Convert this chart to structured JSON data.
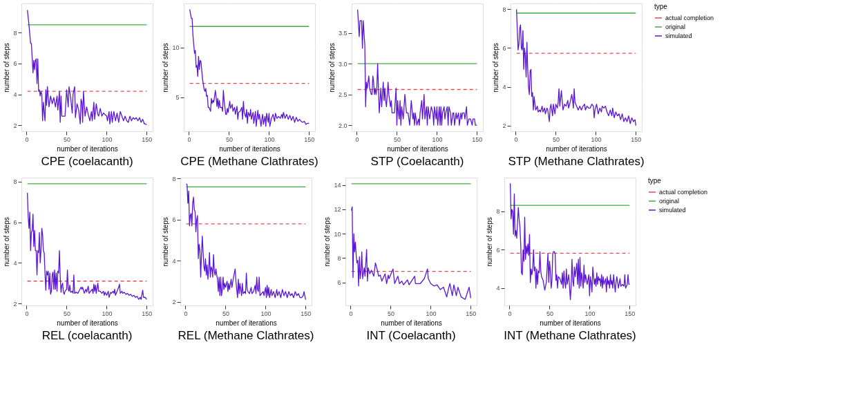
{
  "chart_data": [
    {
      "type": "line",
      "title": "CPE (coelacanth)",
      "xlabel": "number of iterations",
      "ylabel": "number of steps",
      "xlim": [
        -6.45,
        157.45
      ],
      "xticks": [
        0,
        50,
        100,
        150
      ],
      "ylim": [
        1.62,
        9.88
      ],
      "yticks": [
        2,
        4,
        6,
        8
      ],
      "grid": true,
      "line_style": "solid",
      "series": [
        {
          "color": "#e8474c",
          "line_style": "dashed",
          "x": [
            1,
            150
          ],
          "values": [
            4.2,
            4.2
          ]
        },
        {
          "color": "#3cae3c",
          "x": [
            1,
            150
          ],
          "values": [
            8.5,
            8.5
          ]
        },
        {
          "color": "#5a16d6",
          "x": [
            1,
            3,
            5,
            6,
            8,
            9,
            10,
            11,
            12,
            13,
            14,
            15,
            16,
            17,
            18,
            19,
            20,
            21,
            23,
            24,
            25,
            26,
            28,
            30,
            32,
            34,
            36,
            38,
            39,
            41,
            42,
            43,
            44,
            46,
            48,
            50,
            52,
            53,
            55,
            57,
            58,
            60,
            61,
            63,
            65,
            67,
            68,
            69,
            70,
            71,
            73,
            75,
            77,
            79,
            81,
            82,
            84,
            85,
            87,
            89,
            90,
            92,
            94,
            96,
            98,
            100,
            101,
            103,
            104,
            106,
            107,
            109,
            111,
            113,
            115,
            117,
            119,
            121,
            123,
            125,
            127,
            129,
            131,
            133,
            135,
            137,
            139,
            141,
            143,
            145,
            147,
            148,
            150
          ],
          "values": [
            9.45,
            8.5,
            7.3,
            7.3,
            5.4,
            6.2,
            5.6,
            6.2,
            6.3,
            4.7,
            6.3,
            4.2,
            4.3,
            3.9,
            4.2,
            4.0,
            2.3,
            3.5,
            2.3,
            4.3,
            3.3,
            4.5,
            3.2,
            3.9,
            3.4,
            3.8,
            3.2,
            3.9,
            3.0,
            4.2,
            2.2,
            3.9,
            2.6,
            2.6,
            2.6,
            4.3,
            3.2,
            4.5,
            3.8,
            2.8,
            4.0,
            4.5,
            2.5,
            3.4,
            3.0,
            2.1,
            3.7,
            3.5,
            2.2,
            4.2,
            2.6,
            3.2,
            2.7,
            2.3,
            2.9,
            2.3,
            3.5,
            2.4,
            3.4,
            2.7,
            2.6,
            3.1,
            2.6,
            2.8,
            2.7,
            2.6,
            2.3,
            2.9,
            2.1,
            2.9,
            2.2,
            2.9,
            2.3,
            2.8,
            2.2,
            2.9,
            2.6,
            2.3,
            2.6,
            2.3,
            2.2,
            2.6,
            2.3,
            2.5,
            2.4,
            2.5,
            2.3,
            2.5,
            2.2,
            2.4,
            2.1,
            2.1,
            2.05
          ]
        }
      ]
    },
    {
      "type": "line",
      "title": "CPE (Methane Clathrates)",
      "xlabel": "number of iterations",
      "ylabel": "number of steps",
      "xlim": [
        -6.45,
        157.45
      ],
      "xticks": [
        0,
        50,
        100,
        150
      ],
      "ylim": [
        1.6,
        14.4
      ],
      "yticks": [
        5,
        10
      ],
      "grid": true,
      "line_style": "solid",
      "series": [
        {
          "color": "#e8474c",
          "line_style": "dashed",
          "x": [
            1,
            150
          ],
          "values": [
            6.4,
            6.4
          ]
        },
        {
          "color": "#3cae3c",
          "x": [
            1,
            150
          ],
          "values": [
            12.1,
            12.1
          ]
        },
        {
          "color": "#5a16d6",
          "x": [
            1,
            3,
            4,
            5,
            7,
            8,
            9,
            10,
            11,
            12,
            13,
            14,
            15,
            17,
            19,
            20,
            21,
            22,
            23,
            24,
            25,
            27,
            28,
            29,
            30,
            31,
            33,
            34,
            35,
            36,
            37,
            38,
            39,
            41,
            42,
            43,
            44,
            46,
            47,
            48,
            49,
            51,
            52,
            54,
            55,
            57,
            58,
            60,
            61,
            62,
            64,
            66,
            67,
            68,
            69,
            71,
            72,
            73,
            74,
            76,
            77,
            78,
            80,
            81,
            83,
            84,
            86,
            87,
            88,
            90,
            91,
            92,
            93,
            95,
            96,
            97,
            99,
            100,
            101,
            103,
            105,
            107,
            108,
            110,
            112,
            114,
            116,
            117,
            118,
            120,
            122,
            124,
            126,
            128,
            130,
            132,
            134,
            136,
            138,
            140,
            142,
            144,
            146,
            148,
            150
          ],
          "values": [
            13.8,
            12.9,
            12.9,
            11.2,
            9.4,
            9.7,
            8.0,
            8.2,
            7.1,
            9.1,
            7.8,
            8.7,
            8.6,
            6.8,
            5.8,
            5.6,
            5.9,
            5.1,
            5.2,
            4.0,
            4.0,
            3.6,
            4.9,
            4.4,
            4.7,
            4.5,
            5.7,
            5.0,
            4.1,
            4.9,
            3.9,
            4.7,
            4.0,
            4.0,
            3.6,
            5.7,
            4.6,
            3.3,
            3.3,
            3.9,
            3.5,
            4.6,
            3.9,
            4.3,
            3.6,
            4.0,
            3.3,
            4.1,
            2.8,
            3.5,
            3.6,
            4.0,
            2.8,
            4.6,
            3.5,
            3.0,
            3.8,
            2.4,
            3.5,
            3.1,
            3.8,
            2.8,
            3.5,
            2.4,
            3.6,
            2.1,
            3.7,
            2.8,
            3.3,
            2.1,
            2.8,
            3.3,
            2.3,
            3.1,
            2.1,
            3.4,
            2.5,
            3.4,
            2.1,
            2.9,
            3.3,
            2.6,
            3.4,
            2.9,
            3.1,
            2.9,
            3.3,
            2.9,
            3.5,
            2.9,
            3.3,
            2.8,
            3.2,
            2.7,
            3.1,
            2.5,
            3.0,
            2.6,
            2.8,
            2.6,
            2.5,
            2.6,
            2.3,
            2.4,
            2.4
          ]
        }
      ]
    },
    {
      "type": "line",
      "title": "STP (Coelacanth)",
      "xlabel": "number of iterations",
      "ylabel": "number of steps",
      "xlim": [
        -6.45,
        157.45
      ],
      "xticks": [
        0,
        50,
        100,
        150
      ],
      "ylim": [
        1.9,
        3.98
      ],
      "yticks": [
        {
          "value": 2,
          "label": "2.0"
        },
        2.5,
        {
          "value": 3,
          "label": "3.0"
        },
        3.5
      ],
      "grid": true,
      "line_style": "solid",
      "series": [
        {
          "color": "#e8474c",
          "line_style": "dashed",
          "x": [
            1,
            150
          ],
          "values": [
            2.58,
            2.58
          ]
        },
        {
          "color": "#3cae3c",
          "x": [
            1,
            150
          ],
          "values": [
            3.0,
            3.0
          ]
        },
        {
          "color": "#5a16d6",
          "x": [
            1,
            3,
            4,
            6,
            7,
            8,
            10,
            11,
            12,
            13,
            15,
            16,
            18,
            19,
            20,
            21,
            22,
            23,
            24,
            25,
            26,
            28,
            30,
            31,
            33,
            34,
            35,
            36,
            37,
            39,
            40,
            42,
            43,
            44,
            47,
            49,
            50,
            51,
            52,
            53,
            54,
            55,
            56,
            58,
            60,
            62,
            64,
            66,
            68,
            70,
            71,
            72,
            73,
            75,
            77,
            78,
            79,
            81,
            82,
            84,
            85,
            87,
            88,
            89,
            91,
            93,
            95,
            96,
            97,
            99,
            100,
            101,
            103,
            104,
            105,
            106,
            107,
            109,
            110,
            111,
            113,
            114,
            115,
            117,
            118,
            120,
            121,
            122,
            124,
            125,
            127,
            128,
            130,
            131,
            132,
            134,
            135,
            137,
            138,
            140,
            142,
            144,
            145,
            147,
            148,
            150
          ],
          "values": [
            3.88,
            3.44,
            3.7,
            3.7,
            3.25,
            3.7,
            3.3,
            2.3,
            2.7,
            2.6,
            2.8,
            2.6,
            2.5,
            2.5,
            2.8,
            2.7,
            2.5,
            2.6,
            2.5,
            2.6,
            3.0,
            2.2,
            2.6,
            2.3,
            2.7,
            2.4,
            2.6,
            2.4,
            2.3,
            2.7,
            2.5,
            2.3,
            2.4,
            2.2,
            2.2,
            2.6,
            2.0,
            2.4,
            2.2,
            2.1,
            2.4,
            2.0,
            2.3,
            2.1,
            2.5,
            2.2,
            2.2,
            2.0,
            2.4,
            2.1,
            2.2,
            2.0,
            2.2,
            2.0,
            2.1,
            2.0,
            2.2,
            2.4,
            2.1,
            2.5,
            2.1,
            2.3,
            2.0,
            2.3,
            2.1,
            2.3,
            2.2,
            2.0,
            2.3,
            2.1,
            2.3,
            2.0,
            2.3,
            2.0,
            2.3,
            2.0,
            2.2,
            2.3,
            2.1,
            2.2,
            2.3,
            2.0,
            2.3,
            2.2,
            2.0,
            2.2,
            2.2,
            2.0,
            2.2,
            2.1,
            2.2,
            2.0,
            2.2,
            2.1,
            2.2,
            2.2,
            2.1,
            2.3,
            2.0,
            2.1,
            2.1,
            2.0,
            2.1,
            2.1,
            2.0,
            2.0
          ]
        }
      ]
    },
    {
      "type": "line",
      "title": "STP (Methane Clathrates)",
      "xlabel": "number of iterations",
      "ylabel": "number of steps",
      "xlim": [
        -6.45,
        157.45
      ],
      "xticks": [
        0,
        50,
        100,
        150
      ],
      "ylim": [
        1.7,
        8.3
      ],
      "yticks": [
        2,
        4,
        6,
        8
      ],
      "grid": true,
      "line_style": "solid",
      "legend": "right",
      "legend_title": "type",
      "series": [
        {
          "name": "actual completion",
          "color": "#e8474c",
          "line_style": "dashed",
          "x": [
            1,
            150
          ],
          "values": [
            5.73,
            5.73
          ]
        },
        {
          "name": "original",
          "color": "#3cae3c",
          "x": [
            1,
            150
          ],
          "values": [
            7.8,
            7.8
          ]
        },
        {
          "name": "simulated",
          "color": "#5a16d6",
          "x": [
            1,
            2,
            3,
            4,
            5,
            6,
            7,
            8,
            9,
            10,
            11,
            12,
            13,
            14,
            15,
            16,
            17,
            18,
            19,
            20,
            21,
            22,
            23,
            24,
            25,
            27,
            28,
            30,
            31,
            33,
            34,
            36,
            37,
            39,
            40,
            42,
            43,
            44,
            46,
            47,
            49,
            50,
            52,
            53,
            54,
            55,
            57,
            59,
            61,
            63,
            65,
            66,
            68,
            70,
            71,
            72,
            73,
            74,
            76,
            78,
            80,
            82,
            84,
            86,
            87,
            89,
            91,
            93,
            95,
            97,
            98,
            99,
            101,
            103,
            105,
            107,
            108,
            110,
            112,
            114,
            116,
            118,
            120,
            121,
            123,
            125,
            127,
            129,
            131,
            133,
            135,
            137,
            139,
            141,
            143,
            145,
            147,
            149,
            150
          ],
          "values": [
            8.0,
            6.9,
            5.9,
            6.2,
            7.0,
            7.2,
            6.0,
            5.9,
            6.9,
            4.9,
            6.0,
            5.6,
            4.5,
            6.3,
            4.9,
            4.0,
            3.6,
            4.8,
            4.9,
            3.5,
            3.7,
            2.8,
            3.5,
            3.1,
            2.8,
            3.0,
            2.7,
            2.8,
            2.7,
            3.0,
            2.7,
            2.9,
            2.6,
            2.9,
            2.8,
            2.2,
            2.9,
            3.1,
            2.5,
            3.1,
            2.6,
            3.1,
            2.9,
            3.2,
            3.9,
            3.0,
            3.8,
            2.8,
            3.1,
            3.0,
            3.3,
            2.9,
            3.2,
            3.6,
            3.3,
            2.9,
            3.9,
            3.2,
            3.0,
            2.8,
            3.0,
            2.8,
            3.0,
            3.1,
            2.8,
            3.0,
            2.9,
            2.9,
            3.1,
            3.0,
            2.4,
            2.8,
            3.1,
            2.6,
            2.9,
            2.7,
            3.0,
            2.9,
            3.0,
            2.7,
            2.5,
            2.8,
            2.5,
            2.9,
            2.4,
            2.7,
            2.5,
            2.6,
            2.3,
            2.6,
            2.2,
            2.4,
            2.2,
            2.5,
            2.1,
            2.4,
            2.2,
            2.3,
            2.0
          ]
        }
      ]
    },
    {
      "type": "line",
      "title": "REL (coelacanth)",
      "xlabel": "number of iterations",
      "ylabel": "number of steps",
      "xlim": [
        -6.45,
        157.45
      ],
      "xticks": [
        0,
        50,
        100,
        150
      ],
      "ylim": [
        1.9,
        8.2
      ],
      "yticks": [
        2,
        4,
        6,
        8
      ],
      "grid": true,
      "line_style": "solid",
      "series": [
        {
          "color": "#e8474c",
          "line_style": "dashed",
          "x": [
            1,
            150
          ],
          "values": [
            3.1,
            3.1
          ]
        },
        {
          "color": "#3cae3c",
          "x": [
            1,
            150
          ],
          "values": [
            7.9,
            7.9
          ]
        },
        {
          "color": "#5a16d6",
          "x": [
            1,
            2,
            3,
            4,
            5,
            6,
            7,
            8,
            9,
            10,
            11,
            12,
            13,
            14,
            15,
            16,
            17,
            18,
            19,
            20,
            21,
            22,
            23,
            24,
            25,
            26,
            27,
            28,
            29,
            30,
            31,
            32,
            33,
            34,
            35,
            36,
            37,
            38,
            39,
            40,
            41,
            42,
            43,
            44,
            45,
            46,
            47,
            48,
            50,
            51,
            52,
            53,
            54,
            55,
            57,
            58,
            59,
            60,
            62,
            64,
            66,
            68,
            69,
            70,
            72,
            74,
            75,
            77,
            78,
            80,
            82,
            83,
            84,
            85,
            86,
            87,
            89,
            90,
            92,
            94,
            96,
            97,
            98,
            100,
            102,
            103,
            105,
            106,
            108,
            109,
            110,
            111,
            113,
            115,
            116,
            117,
            119,
            120,
            122,
            124,
            126,
            128,
            130,
            132,
            134,
            136,
            138,
            140,
            142,
            143,
            145,
            146,
            148,
            150
          ],
          "values": [
            7.45,
            6.3,
            5.7,
            6.5,
            4.6,
            5.5,
            5.6,
            6.4,
            4.8,
            5.6,
            4.6,
            4.6,
            3.4,
            4.6,
            4.5,
            5.5,
            4.0,
            4.6,
            5.7,
            5.4,
            4.6,
            4.5,
            3.5,
            2.65,
            3.6,
            3.4,
            3.6,
            2.7,
            3.5,
            2.45,
            2.6,
            3.4,
            3.55,
            2.7,
            3.65,
            2.7,
            3.5,
            2.6,
            3.6,
            3.5,
            4.6,
            3.3,
            2.55,
            2.9,
            3.0,
            2.55,
            2.45,
            2.6,
            2.7,
            3.65,
            2.7,
            2.6,
            2.9,
            2.55,
            2.6,
            2.5,
            3.4,
            2.5,
            2.55,
            2.5,
            2.65,
            2.8,
            2.7,
            2.8,
            2.5,
            2.7,
            2.55,
            2.85,
            2.5,
            2.6,
            2.7,
            2.5,
            2.95,
            2.6,
            2.9,
            2.5,
            3.0,
            2.6,
            2.6,
            2.5,
            2.6,
            2.4,
            2.55,
            2.4,
            2.6,
            2.3,
            2.55,
            2.5,
            2.6,
            2.5,
            2.7,
            2.4,
            2.6,
            2.8,
            2.95,
            2.5,
            2.6,
            2.5,
            2.55,
            2.45,
            2.5,
            2.4,
            2.45,
            2.35,
            2.4,
            2.3,
            2.35,
            2.2,
            2.3,
            2.2,
            2.65,
            2.3,
            2.3,
            2.2
          ]
        }
      ]
    },
    {
      "type": "line",
      "title": "REL (Methane Clathrates)",
      "xlabel": "number of iterations",
      "ylabel": "number of steps",
      "xlim": [
        -6.45,
        157.45
      ],
      "xticks": [
        0,
        50,
        100,
        150
      ],
      "ylim": [
        1.82,
        8.05
      ],
      "yticks": [
        2,
        4,
        6,
        8
      ],
      "grid": true,
      "line_style": "solid",
      "series": [
        {
          "color": "#e8474c",
          "line_style": "dashed",
          "x": [
            1,
            150
          ],
          "values": [
            5.8,
            5.8
          ]
        },
        {
          "color": "#3cae3c",
          "x": [
            1,
            150
          ],
          "values": [
            7.6,
            7.6
          ]
        },
        {
          "color": "#5a16d6",
          "x": [
            1,
            2,
            3,
            4,
            5,
            6,
            7,
            8,
            9,
            10,
            11,
            12,
            13,
            14,
            15,
            16,
            17,
            18,
            19,
            20,
            21,
            22,
            23,
            24,
            25,
            26,
            27,
            28,
            29,
            30,
            31,
            32,
            33,
            34,
            35,
            36,
            37,
            38,
            39,
            40,
            41,
            42,
            43,
            44,
            45,
            46,
            47,
            48,
            49,
            50,
            52,
            53,
            54,
            55,
            57,
            58,
            60,
            62,
            63,
            64,
            65,
            66,
            67,
            68,
            70,
            71,
            72,
            74,
            75,
            76,
            77,
            78,
            80,
            82,
            83,
            85,
            87,
            88,
            89,
            90,
            91,
            92,
            93,
            95,
            97,
            98,
            100,
            101,
            102,
            103,
            104,
            105,
            107,
            108,
            110,
            112,
            114,
            115,
            117,
            119,
            121,
            123,
            125,
            127,
            129,
            131,
            133,
            135,
            137,
            139,
            141,
            143,
            145,
            147,
            148,
            150
          ],
          "values": [
            7.75,
            7.7,
            6.8,
            7.4,
            5.7,
            6.2,
            6.3,
            5.7,
            6.8,
            7.1,
            6.5,
            6.4,
            5.4,
            6.0,
            6.2,
            4.1,
            4.8,
            4.5,
            3.2,
            4.3,
            5.2,
            4.4,
            3.7,
            3.5,
            4.1,
            3.3,
            3.8,
            3.1,
            3.6,
            4.4,
            3.2,
            3.7,
            3.6,
            3.2,
            4.3,
            3.5,
            3.3,
            3.6,
            3.3,
            3.1,
            2.5,
            3.2,
            2.3,
            3.2,
            2.3,
            2.6,
            3.2,
            2.6,
            2.9,
            2.7,
            3.0,
            2.5,
            2.9,
            2.6,
            3.1,
            2.7,
            3.2,
            3.6,
            3.0,
            2.6,
            2.2,
            3.1,
            2.4,
            2.9,
            2.3,
            2.9,
            2.4,
            2.5,
            2.4,
            3.4,
            2.6,
            2.5,
            2.4,
            2.7,
            2.4,
            2.5,
            2.8,
            2.4,
            3.2,
            2.6,
            2.5,
            3.2,
            2.3,
            2.4,
            2.5,
            2.3,
            2.7,
            2.2,
            2.8,
            2.3,
            2.7,
            2.2,
            2.6,
            2.3,
            2.5,
            2.2,
            2.6,
            2.3,
            2.5,
            2.2,
            2.6,
            2.3,
            2.5,
            2.2,
            2.5,
            2.3,
            2.4,
            2.2,
            2.5,
            2.3,
            2.4,
            2.2,
            2.2,
            2.3,
            2.5,
            2.1
          ]
        }
      ]
    },
    {
      "type": "line",
      "title": "INT (Coelacanth)",
      "xlabel": "number of iterations",
      "ylabel": "number of steps",
      "xlim": [
        -6.45,
        157.45
      ],
      "xticks": [
        0,
        50,
        100,
        150
      ],
      "ylim": [
        4.1,
        14.6
      ],
      "yticks": [
        6,
        8,
        10,
        12,
        14
      ],
      "grid": true,
      "line_style": "solid",
      "series": [
        {
          "color": "#e8474c",
          "line_style": "dashed",
          "x": [
            1,
            150
          ],
          "values": [
            6.9,
            6.9
          ]
        },
        {
          "color": "#3cae3c",
          "x": [
            1,
            150
          ],
          "values": [
            14.1,
            14.1
          ]
        },
        {
          "color": "#5a16d6",
          "x": [
            1,
            2,
            3,
            4,
            5,
            6,
            7,
            8,
            9,
            10,
            11,
            12,
            13,
            14,
            15,
            17,
            18,
            20,
            21,
            22,
            24,
            26,
            29,
            31,
            33,
            35,
            37,
            39,
            43,
            45,
            47,
            48,
            53,
            55,
            59,
            61,
            64,
            66,
            71,
            73,
            80,
            81,
            87,
            92,
            96,
            97,
            100,
            104,
            108,
            112,
            116,
            120,
            122,
            124,
            127,
            129,
            132,
            134,
            138,
            143,
            148,
            150
          ],
          "values": [
            11.9,
            12.2,
            6.4,
            10.0,
            8.5,
            9.3,
            8.2,
            7.6,
            7.8,
            5.7,
            8.1,
            6.3,
            6.9,
            8.5,
            6.3,
            7.2,
            6.5,
            8.7,
            6.1,
            7.2,
            6.7,
            7.0,
            6.5,
            7.6,
            7.1,
            6.5,
            6.6,
            6.1,
            6.7,
            5.9,
            6.6,
            6.3,
            7.1,
            5.9,
            6.5,
            5.9,
            6.1,
            5.8,
            6.2,
            5.8,
            6.5,
            5.9,
            5.9,
            6.3,
            7.1,
            6.3,
            5.9,
            5.7,
            5.8,
            5.4,
            5.6,
            4.8,
            5.4,
            5.9,
            4.9,
            5.8,
            4.9,
            5.6,
            4.8,
            4.6,
            5.6,
            4.7
          ]
        }
      ]
    },
    {
      "type": "line",
      "title": "INT (Methane Clathrates)",
      "xlabel": "number of iterations",
      "ylabel": "number of steps",
      "xlim": [
        -6.45,
        157.45
      ],
      "xticks": [
        0,
        50,
        100,
        150
      ],
      "ylim": [
        3.1,
        9.75
      ],
      "yticks": [
        4,
        6,
        8
      ],
      "grid": true,
      "line_style": "solid",
      "legend": "right",
      "legend_title": "type",
      "series": [
        {
          "name": "actual completion",
          "color": "#e8474c",
          "line_style": "dashed",
          "x": [
            1,
            150
          ],
          "values": [
            5.82,
            5.82
          ]
        },
        {
          "name": "original",
          "color": "#3cae3c",
          "x": [
            1,
            150
          ],
          "values": [
            8.31,
            8.31
          ]
        },
        {
          "name": "simulated",
          "color": "#5a16d6",
          "x": [
            1,
            2,
            3,
            4,
            5,
            6,
            7,
            8,
            9,
            11,
            12,
            13,
            14,
            15,
            16,
            17,
            18,
            19,
            20,
            21,
            22,
            23,
            24,
            25,
            26,
            27,
            28,
            29,
            30,
            31,
            32,
            33,
            34,
            35,
            36,
            37,
            38,
            39,
            40,
            42,
            44,
            46,
            48,
            49,
            50,
            51,
            52,
            53,
            54,
            55,
            56,
            57,
            58,
            59,
            60,
            61,
            63,
            65,
            66,
            67,
            68,
            69,
            70,
            71,
            72,
            74,
            76,
            77,
            78,
            79,
            80,
            81,
            82,
            84,
            85,
            86,
            87,
            88,
            89,
            90,
            91,
            92,
            93,
            94,
            95,
            97,
            99,
            100,
            101,
            102,
            103,
            104,
            105,
            106,
            107,
            108,
            109,
            110,
            111,
            112,
            113,
            114,
            115,
            116,
            117,
            118,
            120,
            121,
            122,
            123,
            124,
            125,
            126,
            127,
            128,
            129,
            130,
            132,
            133,
            134,
            136,
            138,
            139,
            141,
            143,
            144,
            145,
            147,
            148,
            149,
            150
          ],
          "values": [
            9.45,
            7.6,
            8.1,
            8.0,
            6.8,
            8.9,
            6.7,
            7.0,
            6.6,
            8.2,
            7.6,
            7.2,
            6.3,
            4.8,
            4.7,
            6.0,
            5.4,
            7.7,
            5.5,
            6.2,
            5.8,
            6.3,
            5.7,
            6.8,
            4.3,
            5.0,
            4.7,
            5.0,
            6.0,
            4.9,
            5.1,
            4.0,
            5.0,
            4.2,
            4.9,
            4.8,
            5.9,
            4.9,
            4.6,
            4.4,
            3.9,
            4.3,
            5.8,
            4.3,
            5.4,
            4.9,
            4.0,
            4.4,
            5.8,
            5.9,
            5.9,
            5.8,
            4.4,
            4.7,
            4.0,
            4.6,
            4.5,
            4.2,
            4.8,
            4.0,
            4.9,
            4.3,
            4.0,
            5.0,
            4.2,
            4.7,
            3.4,
            4.1,
            5.5,
            4.4,
            4.1,
            5.1,
            4.6,
            5.3,
            4.2,
            5.5,
            4.0,
            5.6,
            4.1,
            4.8,
            4.5,
            4.0,
            5.2,
            4.3,
            4.7,
            4.2,
            4.7,
            3.6,
            4.6,
            4.3,
            3.8,
            5.1,
            4.6,
            4.2,
            4.5,
            4.1,
            4.8,
            4.2,
            4.6,
            4.4,
            4.5,
            4.1,
            4.7,
            4.0,
            4.6,
            4.2,
            4.5,
            3.8,
            4.6,
            4.2,
            4.4,
            4.0,
            4.7,
            4.2,
            4.4,
            4.0,
            4.7,
            3.8,
            4.3,
            4.6,
            4.0,
            4.5,
            4.1,
            4.2,
            4.1,
            4.7,
            4.0,
            4.2,
            4.7,
            4.2,
            4.2
          ]
        }
      ]
    }
  ]
}
